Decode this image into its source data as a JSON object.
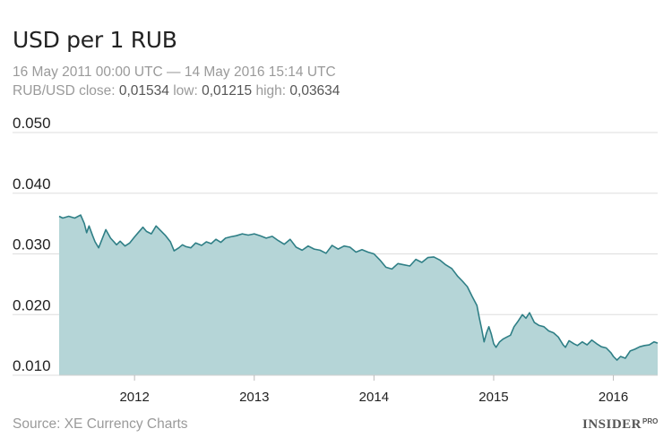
{
  "header": {
    "title": "USD per 1 RUB",
    "date_range": "16 May 2011 00:00 UTC — 14 May 2016 15:14 UTC",
    "stats_label_close": "RUB/USD close:",
    "stats_close": "0,01534",
    "stats_label_low": "low:",
    "stats_low": "0,01215",
    "stats_label_high": "high:",
    "stats_high": "0,03634"
  },
  "footer": {
    "source": "Source: XE Currency Charts",
    "logo_text": "INSIDER",
    "logo_sup": "PRO"
  },
  "colors": {
    "area_fill": "#b5d5d7",
    "line": "#2f7f86",
    "grid": "#dddddd",
    "axis_text": "#222222"
  },
  "chart_data": {
    "type": "area",
    "title": "USD per 1 RUB",
    "xlabel": "",
    "ylabel": "",
    "ylim": [
      0.01,
      0.05
    ],
    "xlim": [
      2011.37,
      2016.37
    ],
    "y_ticks": [
      0.01,
      0.02,
      0.03,
      0.04,
      0.05
    ],
    "y_tick_labels": [
      "0.010",
      "0.020",
      "0.030",
      "0.040",
      "0.050"
    ],
    "x_ticks": [
      2012,
      2013,
      2014,
      2015,
      2016
    ],
    "x_tick_labels": [
      "2012",
      "2013",
      "2014",
      "2015",
      "2016"
    ],
    "grid": true,
    "legend": "none",
    "series": [
      {
        "x": [
          2011.37,
          2011.4,
          2011.45,
          2011.5,
          2011.55,
          2011.58,
          2011.6,
          2011.62,
          2011.65,
          2011.67,
          2011.7,
          2011.73,
          2011.76,
          2011.8,
          2011.85,
          2011.88,
          2011.92,
          2011.96,
          2012.0,
          2012.03,
          2012.07,
          2012.1,
          2012.14,
          2012.18,
          2012.22,
          2012.26,
          2012.3,
          2012.33,
          2012.37,
          2012.4,
          2012.43,
          2012.47,
          2012.51,
          2012.56,
          2012.6,
          2012.64,
          2012.68,
          2012.72,
          2012.76,
          2012.8,
          2012.85,
          2012.9,
          2012.95,
          2013.0,
          2013.05,
          2013.1,
          2013.15,
          2013.2,
          2013.25,
          2013.3,
          2013.35,
          2013.4,
          2013.45,
          2013.5,
          2013.55,
          2013.6,
          2013.65,
          2013.7,
          2013.75,
          2013.8,
          2013.85,
          2013.9,
          2013.95,
          2014.0,
          2014.05,
          2014.1,
          2014.15,
          2014.2,
          2014.25,
          2014.3,
          2014.35,
          2014.4,
          2014.45,
          2014.5,
          2014.55,
          2014.6,
          2014.65,
          2014.7,
          2014.74,
          2014.78,
          2014.82,
          2014.86,
          2014.88,
          2014.9,
          2014.92,
          2014.94,
          2014.96,
          2014.98,
          2015.0,
          2015.02,
          2015.05,
          2015.08,
          2015.11,
          2015.14,
          2015.17,
          2015.2,
          2015.24,
          2015.27,
          2015.3,
          2015.34,
          2015.38,
          2015.42,
          2015.46,
          2015.5,
          2015.54,
          2015.58,
          2015.6,
          2015.63,
          2015.67,
          2015.7,
          2015.74,
          2015.78,
          2015.82,
          2015.86,
          2015.9,
          2015.94,
          2015.98,
          2016.0,
          2016.03,
          2016.06,
          2016.1,
          2016.14,
          2016.18,
          2016.22,
          2016.26,
          2016.3,
          2016.34,
          2016.37
        ],
        "y": [
          0.0362,
          0.0359,
          0.0362,
          0.0359,
          0.0364,
          0.035,
          0.0335,
          0.0346,
          0.033,
          0.032,
          0.031,
          0.0325,
          0.034,
          0.0326,
          0.0315,
          0.0321,
          0.0313,
          0.0318,
          0.0328,
          0.0335,
          0.0344,
          0.0337,
          0.0333,
          0.0346,
          0.0338,
          0.033,
          0.032,
          0.0305,
          0.031,
          0.0315,
          0.0312,
          0.031,
          0.0318,
          0.0314,
          0.032,
          0.0317,
          0.0324,
          0.0319,
          0.0326,
          0.0328,
          0.033,
          0.0333,
          0.0331,
          0.0333,
          0.033,
          0.0326,
          0.0329,
          0.0322,
          0.0316,
          0.0324,
          0.0311,
          0.0306,
          0.0313,
          0.0308,
          0.0306,
          0.0301,
          0.0314,
          0.0308,
          0.0313,
          0.0311,
          0.0303,
          0.0307,
          0.0303,
          0.03,
          0.029,
          0.0278,
          0.0275,
          0.0284,
          0.0282,
          0.028,
          0.0291,
          0.0286,
          0.0294,
          0.0295,
          0.029,
          0.0282,
          0.0276,
          0.0263,
          0.0255,
          0.0246,
          0.023,
          0.0215,
          0.0195,
          0.0176,
          0.0155,
          0.017,
          0.018,
          0.0168,
          0.0152,
          0.0146,
          0.0155,
          0.016,
          0.0163,
          0.0166,
          0.018,
          0.0188,
          0.02,
          0.0194,
          0.0203,
          0.0187,
          0.0182,
          0.018,
          0.0173,
          0.017,
          0.0163,
          0.015,
          0.0146,
          0.0157,
          0.0152,
          0.0149,
          0.0155,
          0.015,
          0.0158,
          0.0152,
          0.0147,
          0.0145,
          0.0137,
          0.0131,
          0.0125,
          0.0131,
          0.0128,
          0.014,
          0.0143,
          0.0147,
          0.0149,
          0.015,
          0.0155,
          0.0153
        ]
      }
    ]
  }
}
